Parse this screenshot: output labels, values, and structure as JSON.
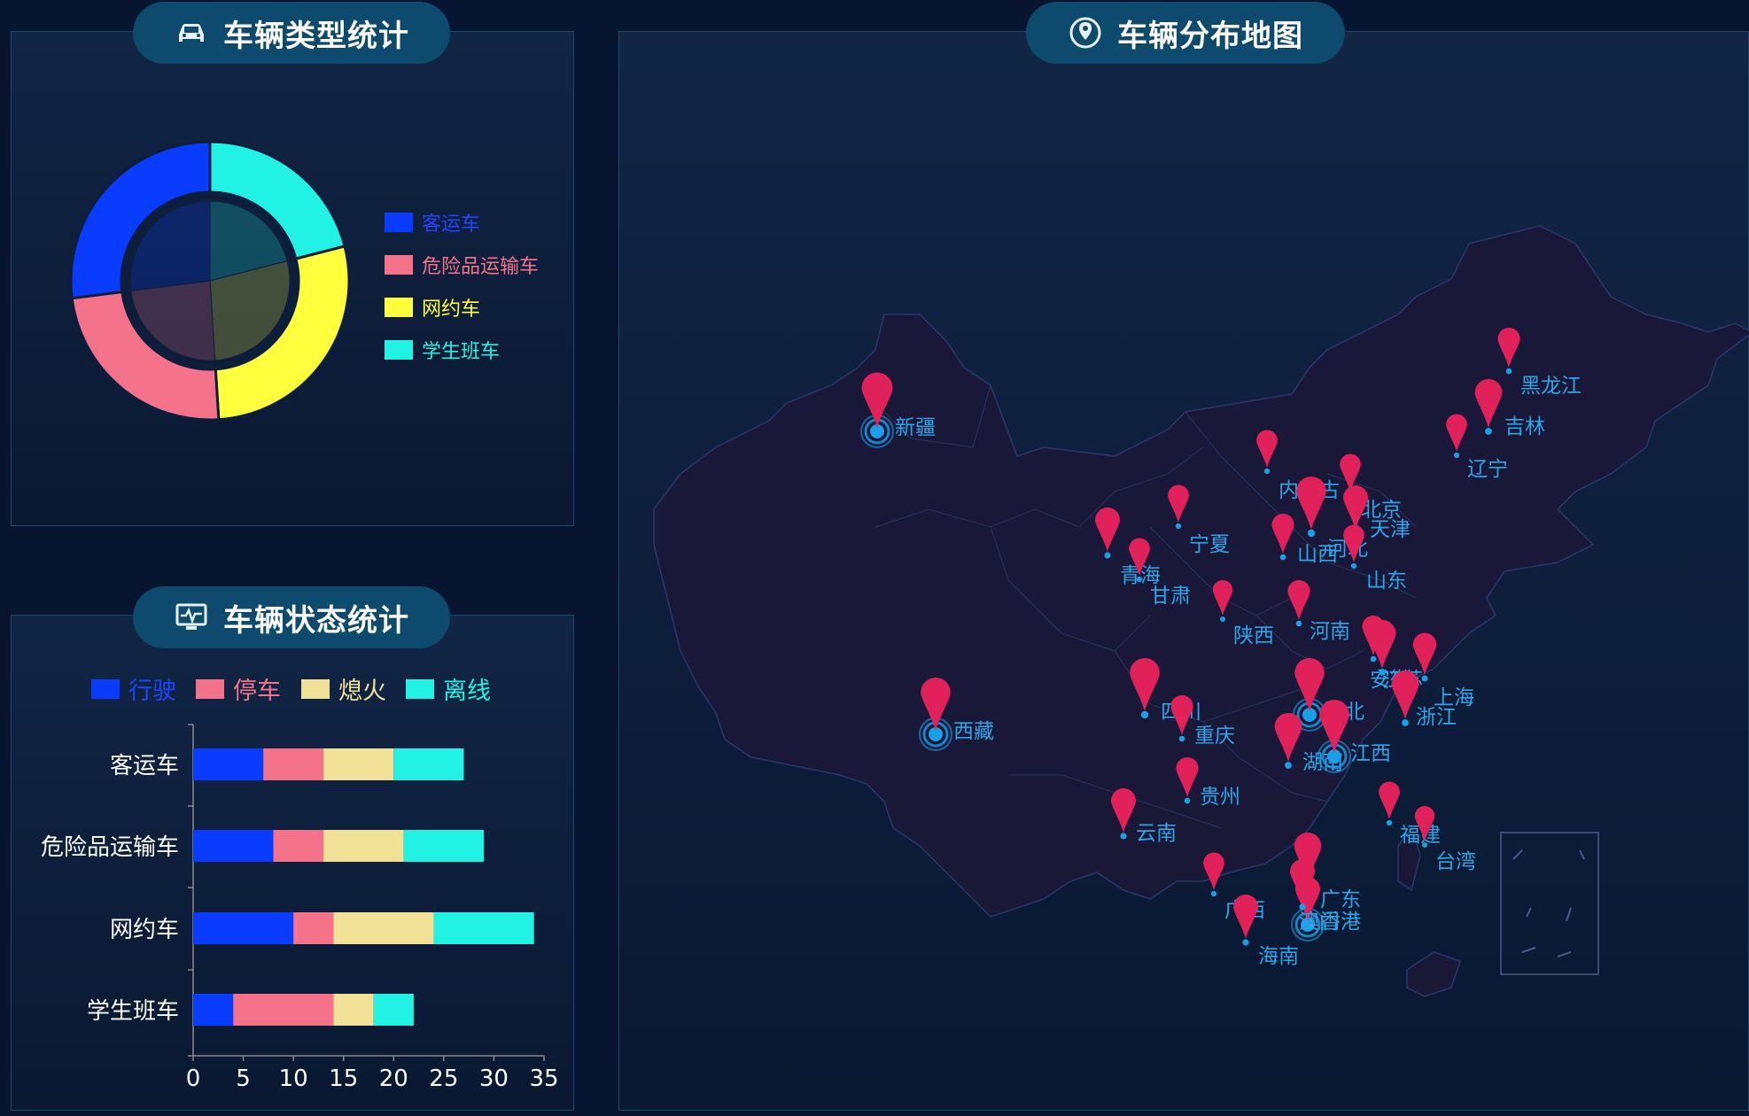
{
  "type_panel": {
    "title": "车辆类型统计",
    "icon": "car-icon",
    "legend": [
      {
        "label": "客运车",
        "color": "#0a3cff",
        "text_color": "#1e46ff"
      },
      {
        "label": "危险品运输车",
        "color": "#f4738b",
        "text_color": "#f4738b"
      },
      {
        "label": "网约车",
        "color": "#ffff3d",
        "text_color": "#ffff3d"
      },
      {
        "label": "学生班车",
        "color": "#22f2e4",
        "text_color": "#22f2e4"
      }
    ]
  },
  "status_panel": {
    "title": "车辆状态统计",
    "icon": "monitor-icon",
    "legend": [
      {
        "label": "行驶",
        "color": "#0a3cff",
        "text_color": "#1e46ff"
      },
      {
        "label": "停车",
        "color": "#f4738b",
        "text_color": "#f4738b"
      },
      {
        "label": "熄火",
        "color": "#f0e196",
        "text_color": "#f0e196"
      },
      {
        "label": "离线",
        "color": "#22f2e4",
        "text_color": "#22f2e4"
      }
    ]
  },
  "map_panel": {
    "title": "车辆分布地图",
    "icon": "map-pin-icon",
    "marker_color": "#e0215a",
    "dot_color": "#1aa0e8",
    "label_color": "#2fa4e8",
    "cities": [
      {
        "name": "新疆",
        "ripple": true
      },
      {
        "name": "西藏",
        "ripple": true
      },
      {
        "name": "黑龙江"
      },
      {
        "name": "吉林"
      },
      {
        "name": "辽宁"
      },
      {
        "name": "内蒙古"
      },
      {
        "name": "北京"
      },
      {
        "name": "天津"
      },
      {
        "name": "河北"
      },
      {
        "name": "山西"
      },
      {
        "name": "山东"
      },
      {
        "name": "宁夏"
      },
      {
        "name": "青海"
      },
      {
        "name": "甘肃"
      },
      {
        "name": "陕西"
      },
      {
        "name": "河南"
      },
      {
        "name": "安徽"
      },
      {
        "name": "江苏"
      },
      {
        "name": "上海"
      },
      {
        "name": "浙江"
      },
      {
        "name": "四川"
      },
      {
        "name": "重庆"
      },
      {
        "name": "湖北",
        "ripple": true
      },
      {
        "name": "湖南"
      },
      {
        "name": "江西",
        "ripple": true
      },
      {
        "name": "贵州"
      },
      {
        "name": "云南"
      },
      {
        "name": "福建"
      },
      {
        "name": "台湾"
      },
      {
        "name": "广西"
      },
      {
        "name": "广东"
      },
      {
        "name": "香港",
        "ripple": true
      },
      {
        "name": "澳门"
      },
      {
        "name": "海南"
      }
    ]
  },
  "chart_data": [
    {
      "type": "pie",
      "style": "donut",
      "categories": [
        "客运车",
        "危险品运输车",
        "网约车",
        "学生班车"
      ],
      "values": [
        27,
        24,
        28,
        21
      ],
      "colors": [
        "#0a3cff",
        "#f4738b",
        "#ffff3d",
        "#22f2e4"
      ]
    },
    {
      "type": "bar",
      "orientation": "horizontal",
      "stacked": true,
      "categories": [
        "客运车",
        "危险品运输车",
        "网约车",
        "学生班车"
      ],
      "series": [
        {
          "name": "行驶",
          "values": [
            7,
            8,
            10,
            4
          ],
          "color": "#0a3cff"
        },
        {
          "name": "停车",
          "values": [
            6,
            5,
            4,
            10
          ],
          "color": "#f4738b"
        },
        {
          "name": "熄火",
          "values": [
            7,
            8,
            10,
            4
          ],
          "color": "#f0e196"
        },
        {
          "name": "离线",
          "values": [
            7,
            8,
            10,
            4
          ],
          "color": "#22f2e4"
        }
      ],
      "xlim": [
        0,
        35
      ],
      "xticks": [
        0,
        5,
        10,
        15,
        20,
        25,
        30,
        35
      ],
      "grid": false,
      "legend": "top"
    }
  ]
}
